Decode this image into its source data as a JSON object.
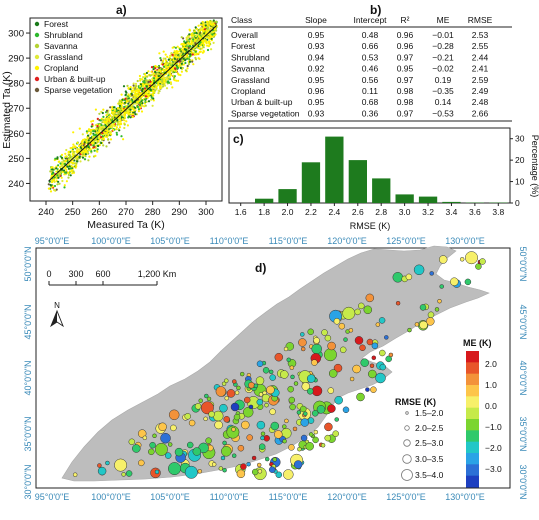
{
  "panel_a": {
    "label": "a)",
    "xlabel": "Measured Ta (K)",
    "ylabel": "Estimated Ta (K)",
    "xticks": [
      240,
      250,
      260,
      270,
      280,
      290,
      300
    ],
    "yticks": [
      240,
      250,
      260,
      270,
      280,
      290,
      300
    ],
    "xlim": [
      234,
      306
    ],
    "ylim": [
      233,
      306
    ],
    "legend": [
      {
        "label": "Forest",
        "color": "#1a7a1a"
      },
      {
        "label": "Shrubland",
        "color": "#2db82d"
      },
      {
        "label": "Savanna",
        "color": "#b5d334"
      },
      {
        "label": "Grassland",
        "color": "#e0ea3a"
      },
      {
        "label": "Cropland",
        "color": "#fff200"
      },
      {
        "label": "Urban & built-up",
        "color": "#e02020"
      },
      {
        "label": "Sparse vegetation",
        "color": "#6b5a3a"
      }
    ]
  },
  "panel_b": {
    "label": "b)",
    "headers": [
      "Class",
      "Slope",
      "Intercept",
      "R²",
      "ME",
      "RMSE"
    ],
    "rows": [
      [
        "Overall",
        "0.95",
        "0.48",
        "0.96",
        "−0.01",
        "2.53"
      ],
      [
        "Forest",
        "0.93",
        "0.66",
        "0.96",
        "−0.28",
        "2.55"
      ],
      [
        "Shrubland",
        "0.94",
        "0.53",
        "0.97",
        "−0.21",
        "2.44"
      ],
      [
        "Savanna",
        "0.92",
        "0.46",
        "0.95",
        "−0.02",
        "2.41"
      ],
      [
        "Grassland",
        "0.95",
        "0.56",
        "0.97",
        "0.19",
        "2.59"
      ],
      [
        "Cropland",
        "0.96",
        "0.11",
        "0.98",
        "−0.35",
        "2.49"
      ],
      [
        "Urban & built-up",
        "0.95",
        "0.68",
        "0.98",
        "0.14",
        "2.48"
      ],
      [
        "Sparse vegetation",
        "0.93",
        "0.36",
        "0.97",
        "−0.53",
        "2.66"
      ]
    ]
  },
  "panel_c": {
    "label": "c)",
    "xlabel": "RMSE (K)",
    "ylabel": "Percentage (%)"
  },
  "panel_d": {
    "label": "d)",
    "top_lon_labels": [
      "95°0'0\"E",
      "100°0'0\"E",
      "105°0'0\"E",
      "110°0'0\"E",
      "115°0'0\"E",
      "120°0'0\"E",
      "125°0'0\"E",
      "130°0'0\"E"
    ],
    "bottom_lon_labels": [
      "95°0'0\"E",
      "100°0'0\"E",
      "105°0'0\"E",
      "110°0'0\"E",
      "115°0'0\"E",
      "120°0'0\"E",
      "125°0'0\"E",
      "130°0'0\"E"
    ],
    "lat_labels": [
      "50°0'0\"N",
      "45°0'0\"N",
      "40°0'0\"N",
      "35°0'0\"N",
      "30°0'0\"N"
    ],
    "scale_labels": [
      "0",
      "300",
      "600",
      "1,200 Km"
    ],
    "north": "N",
    "me_title": "ME (K)",
    "me_ticks": [
      "2.0",
      "1.0",
      "0.0",
      "−1.0",
      "−2.0",
      "−3.0"
    ],
    "me_colors": [
      "#d7191c",
      "#e8552a",
      "#f3923a",
      "#fdc54a",
      "#f7f06a",
      "#c6ea4a",
      "#7bd52f",
      "#2fc96b",
      "#22c7c7",
      "#2aa3e6",
      "#2c70d6",
      "#1d3fc0"
    ],
    "rmse_title": "RMSE (K)",
    "rmse_classes": [
      "1.5–2.0",
      "2.0–2.5",
      "2.5–3.0",
      "3.0–3.5",
      "3.5–4.0"
    ]
  },
  "chart_data": [
    {
      "type": "scatter",
      "title": "",
      "xlabel": "Measured Ta (K)",
      "ylabel": "Estimated Ta (K)",
      "xlim": [
        234,
        306
      ],
      "ylim": [
        233,
        306
      ],
      "note_1to1": "dense point cloud along the 1:1 line from about 241 K to 304 K",
      "series": [
        {
          "name": "Forest"
        },
        {
          "name": "Shrubland"
        },
        {
          "name": "Savanna"
        },
        {
          "name": "Grassland"
        },
        {
          "name": "Cropland"
        },
        {
          "name": "Urban & built-up"
        },
        {
          "name": "Sparse vegetation"
        }
      ]
    },
    {
      "type": "table",
      "columns": [
        "Class",
        "Slope",
        "Intercept",
        "R²",
        "ME",
        "RMSE"
      ],
      "rows": [
        [
          "Overall",
          0.95,
          0.48,
          0.96,
          -0.01,
          2.53
        ],
        [
          "Forest",
          0.93,
          0.66,
          0.96,
          -0.28,
          2.55
        ],
        [
          "Shrubland",
          0.94,
          0.53,
          0.97,
          -0.21,
          2.44
        ],
        [
          "Savanna",
          0.92,
          0.46,
          0.95,
          -0.02,
          2.41
        ],
        [
          "Grassland",
          0.95,
          0.56,
          0.97,
          0.19,
          2.59
        ],
        [
          "Cropland",
          0.96,
          0.11,
          0.98,
          -0.35,
          2.49
        ],
        [
          "Urban & built-up",
          0.95,
          0.68,
          0.98,
          0.14,
          2.48
        ],
        [
          "Sparse vegetation",
          0.93,
          0.36,
          0.97,
          -0.53,
          2.66
        ]
      ]
    },
    {
      "type": "bar",
      "xlabel": "RMSE (K)",
      "ylabel": "Percentage (%)",
      "categories": [
        "1.8",
        "2.0",
        "2.2",
        "2.4",
        "2.6",
        "2.8",
        "3.0",
        "3.2",
        "3.4",
        "3.6",
        "3.8"
      ],
      "values": [
        2,
        6.5,
        19,
        31,
        20,
        11.5,
        4,
        3,
        0.5,
        0.2,
        0.2
      ],
      "x_ticks": [
        "1.6",
        "1.8",
        "2.0",
        "2.2",
        "2.4",
        "2.6",
        "2.8",
        "3.0",
        "3.2",
        "3.4",
        "3.6",
        "3.8"
      ],
      "y_ticks": [
        0,
        10,
        20,
        30
      ],
      "ylim": [
        0,
        35
      ],
      "bar_color": "#1e7b1e"
    }
  ]
}
